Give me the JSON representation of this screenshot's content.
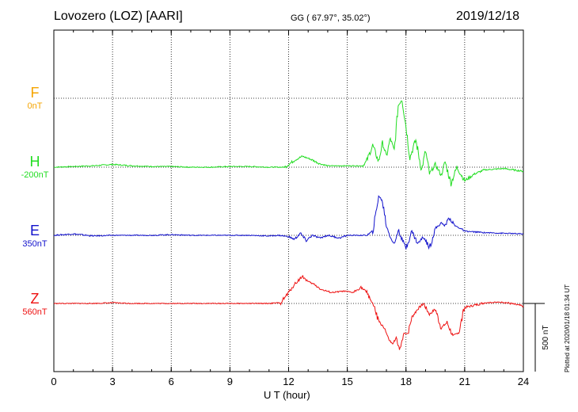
{
  "header": {
    "station": "Lovozero (LOZ)  [AARI]",
    "coords": "GG ( 67.97°,  35.02°)",
    "date": "2019/12/18"
  },
  "footer": {
    "plotted": "Plotted at 2020/01/18 01:34 UT"
  },
  "channels": [
    {
      "name": "F",
      "offset": "0nT",
      "color": "#f5a400"
    },
    {
      "name": "H",
      "offset": "-200nT",
      "color": "#22dd22"
    },
    {
      "name": "E",
      "offset": "350nT",
      "color": "#1111cc"
    },
    {
      "name": "Z",
      "offset": "560nT",
      "color": "#ee1111"
    }
  ],
  "chart_data": {
    "type": "line",
    "title": "",
    "xlabel": "U T (hour)",
    "ylabel": "",
    "xlim": [
      0,
      24
    ],
    "xticks": [
      "0",
      "3",
      "6",
      "9",
      "12",
      "15",
      "18",
      "21",
      "24"
    ],
    "grid": true,
    "scale_bar_label": "500 nT",
    "scale_bar_value": 500,
    "series": [
      {
        "channel": "H",
        "color": "#22dd22",
        "baseline_nT": -200,
        "x": [
          0,
          1,
          2,
          3,
          4,
          5,
          6,
          7,
          8,
          9,
          10,
          11,
          11.8,
          12.3,
          12.7,
          13.1,
          13.6,
          14.0,
          15.0,
          15.8,
          16.0,
          16.3,
          16.6,
          16.8,
          17.0,
          17.2,
          17.4,
          17.6,
          17.8,
          18.0,
          18.2,
          18.5,
          18.8,
          19.0,
          19.2,
          19.5,
          19.8,
          20.0,
          20.3,
          20.6,
          21.0,
          21.5,
          22,
          23,
          24
        ],
        "y": [
          -200,
          -195,
          -190,
          -180,
          -190,
          -195,
          -195,
          -200,
          -200,
          -195,
          -195,
          -200,
          -200,
          -150,
          -120,
          -140,
          -175,
          -190,
          -190,
          -190,
          -150,
          -40,
          -160,
          -20,
          -120,
          10,
          -80,
          250,
          300,
          100,
          -130,
          0,
          -220,
          -80,
          -250,
          -180,
          -260,
          -160,
          -320,
          -200,
          -300,
          -250,
          -220,
          -210,
          -230
        ]
      },
      {
        "channel": "E",
        "color": "#1111cc",
        "baseline_nT": 350,
        "x": [
          0,
          1,
          2,
          3,
          4,
          5,
          6,
          7,
          8,
          9,
          10,
          11,
          11.5,
          12.0,
          12.3,
          12.6,
          12.9,
          13.2,
          13.6,
          14.0,
          14.6,
          15.0,
          15.5,
          16.0,
          16.3,
          16.5,
          16.6,
          16.8,
          17.0,
          17.2,
          17.4,
          17.6,
          17.8,
          18.0,
          18.3,
          18.6,
          18.9,
          19.2,
          19.5,
          19.8,
          20.0,
          20.2,
          20.5,
          20.8,
          21.0,
          22,
          23,
          24
        ],
        "y": [
          350,
          360,
          345,
          350,
          350,
          350,
          355,
          350,
          350,
          350,
          350,
          345,
          350,
          340,
          320,
          365,
          310,
          350,
          330,
          350,
          330,
          350,
          350,
          350,
          380,
          540,
          640,
          600,
          420,
          340,
          280,
          390,
          320,
          260,
          380,
          290,
          340,
          260,
          400,
          440,
          420,
          480,
          420,
          400,
          380,
          370,
          365,
          360
        ]
      },
      {
        "channel": "Z",
        "color": "#ee1111",
        "baseline_nT": 560,
        "x": [
          0,
          1,
          2,
          3,
          4,
          5,
          6,
          7,
          8,
          9,
          10,
          11,
          11.6,
          12.0,
          12.3,
          12.7,
          13.0,
          13.3,
          13.7,
          14.2,
          14.8,
          15.3,
          15.7,
          16.0,
          16.3,
          16.6,
          16.9,
          17.1,
          17.3,
          17.5,
          17.7,
          17.9,
          18.1,
          18.3,
          18.6,
          18.9,
          19.2,
          19.5,
          19.8,
          20.1,
          20.4,
          20.7,
          21.0,
          22,
          23,
          24
        ],
        "y": [
          560,
          560,
          560,
          565,
          560,
          560,
          560,
          560,
          560,
          560,
          560,
          560,
          565,
          640,
          700,
          760,
          720,
          700,
          660,
          640,
          650,
          640,
          680,
          640,
          560,
          430,
          380,
          300,
          260,
          300,
          220,
          340,
          340,
          460,
          520,
          560,
          480,
          520,
          380,
          420,
          320,
          350,
          530,
          565,
          570,
          540
        ]
      }
    ]
  }
}
